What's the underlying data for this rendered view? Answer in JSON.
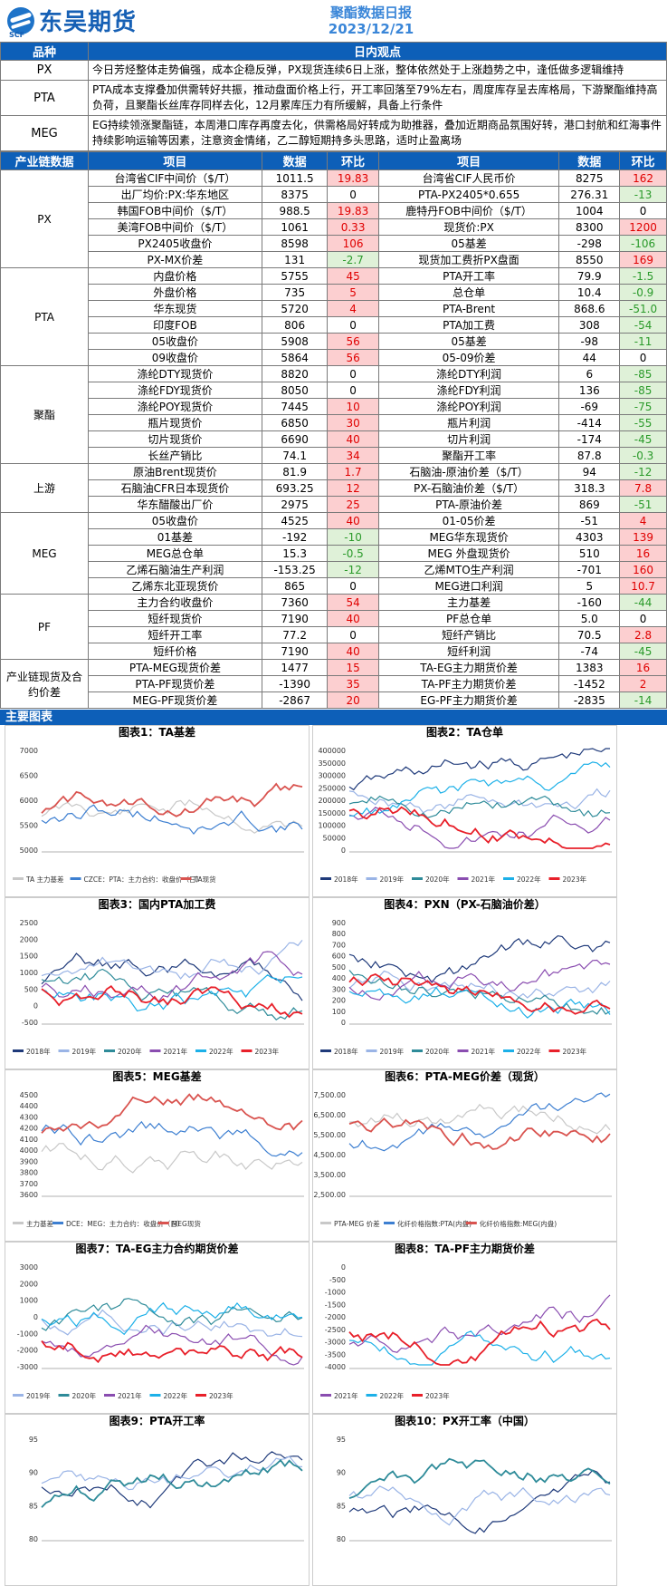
{
  "header": {
    "brand": "东吴期货",
    "brand_sub": "SCF",
    "report": "聚酯数据日报",
    "date": "2023/12/21"
  },
  "view": {
    "col1": "品种",
    "col2": "日内观点",
    "rows": [
      {
        "name": "PX",
        "text": "今日芳烃整体走势偏强，成本企稳反弹，PX现货连续6日上涨，整体依然处于上涨趋势之中，逢低做多逻辑维持"
      },
      {
        "name": "PTA",
        "text": "PTA成本支撑叠加供需转好共振，推动盘面价格上行，开工率回落至79%左右，周度库存呈去库格局，下游聚酯维持高负荷，且聚酯长丝库存同样去化，12月累库压力有所缓解，具备上行条件"
      },
      {
        "name": "MEG",
        "text": "EG持续领涨聚酯链，本周港口库存再度去化，供需格局好转成为助推器，叠加近期商品氛围好转，港口封航和红海事件持续影响运输等因素，注意资金情绪，乙二醇短期持多头思路，适时止盈离场"
      }
    ]
  },
  "table": {
    "headers": [
      "产业链数据",
      "项目",
      "数据",
      "环比",
      "项目",
      "数据",
      "环比"
    ],
    "groups": [
      {
        "name": "PX",
        "rows": [
          [
            "台湾省CIF中间价（$/T）",
            "1011.5",
            "19.83",
            "pos",
            "台湾省CIF人民币价",
            "8275",
            "162",
            "pos"
          ],
          [
            "出厂均价:PX:华东地区",
            "8375",
            "0",
            "",
            "PTA-PX2405*0.655",
            "276.31",
            "-13",
            "neg"
          ],
          [
            "韩国FOB中间价（$/T）",
            "988.5",
            "19.83",
            "pos",
            "鹿特丹FOB中间价（$/T）",
            "1004",
            "0",
            ""
          ],
          [
            "美湾FOB中间价（$/T）",
            "1061",
            "0.33",
            "pos",
            "现货价:PX",
            "8300",
            "1200",
            "pos"
          ],
          [
            "PX2405收盘价",
            "8598",
            "106",
            "pos",
            "05基差",
            "-298",
            "-106",
            "neg"
          ],
          [
            "PX-MX价差",
            "131",
            "-2.7",
            "neg",
            "现货加工费折PX盘面",
            "8550",
            "169",
            "pos"
          ]
        ]
      },
      {
        "name": "PTA",
        "rows": [
          [
            "内盘价格",
            "5755",
            "45",
            "pos",
            "PTA开工率",
            "79.9",
            "-1.5",
            "neg"
          ],
          [
            "外盘价格",
            "735",
            "5",
            "pos",
            "总仓单",
            "10.4",
            "-0.9",
            "neg"
          ],
          [
            "华东现货",
            "5720",
            "4",
            "pos",
            "PTA-Brent",
            "868.6",
            "-51.0",
            "neg"
          ],
          [
            "印度FOB",
            "806",
            "0",
            "",
            "PTA加工费",
            "308",
            "-54",
            "neg"
          ],
          [
            "05收盘价",
            "5908",
            "56",
            "pos",
            "05基差",
            "-98",
            "-11",
            "neg"
          ],
          [
            "09收盘价",
            "5864",
            "56",
            "pos",
            "05-09价差",
            "44",
            "0",
            ""
          ]
        ]
      },
      {
        "name": "聚酯",
        "rows": [
          [
            "涤纶DTY现货价",
            "8820",
            "0",
            "",
            "涤纶DTY利润",
            "6",
            "-85",
            "neg"
          ],
          [
            "涤纶FDY现货价",
            "8050",
            "0",
            "",
            "涤纶FDY利润",
            "136",
            "-85",
            "neg"
          ],
          [
            "涤纶POY现货价",
            "7445",
            "10",
            "pos",
            "涤纶POY利润",
            "-69",
            "-75",
            "neg"
          ],
          [
            "瓶片现货价",
            "6850",
            "30",
            "pos",
            "瓶片利润",
            "-414",
            "-55",
            "neg"
          ],
          [
            "切片现货价",
            "6690",
            "40",
            "pos",
            "切片利润",
            "-174",
            "-45",
            "neg"
          ],
          [
            "长丝产销比",
            "74.1",
            "34",
            "pos",
            "聚酯开工率",
            "87.8",
            "-0.3",
            "neg"
          ]
        ]
      },
      {
        "name": "上游",
        "rows": [
          [
            "原油Brent现货价",
            "81.9",
            "1.7",
            "pos",
            "石脑油-原油价差（$/T）",
            "94",
            "-12",
            "neg"
          ],
          [
            "石脑油CFR日本现货价",
            "693.25",
            "12",
            "pos",
            "PX-石脑油价差（$/T）",
            "318.3",
            "7.8",
            "pos"
          ],
          [
            "华东醋酸出厂价",
            "2975",
            "25",
            "pos",
            "PTA-原油价差",
            "869",
            "-51",
            "neg"
          ]
        ]
      },
      {
        "name": "MEG",
        "rows": [
          [
            "05收盘价",
            "4525",
            "40",
            "pos",
            "01-05价差",
            "-51",
            "4",
            "pos"
          ],
          [
            "01基差",
            "-192",
            "-10",
            "neg",
            "MEG华东现货价",
            "4303",
            "139",
            "pos"
          ],
          [
            "MEG总仓单",
            "15.3",
            "-0.5",
            "neg",
            "MEG 外盘现货价",
            "510",
            "16",
            "pos"
          ],
          [
            "乙烯石脑油生产利润",
            "-153.25",
            "-12",
            "neg",
            "乙烯MTO生产利润",
            "-701",
            "160",
            "pos"
          ],
          [
            "乙烯东北亚现货价",
            "865",
            "0",
            "",
            "MEG进口利润",
            "5",
            "10.7",
            "pos"
          ]
        ]
      },
      {
        "name": "PF",
        "rows": [
          [
            "主力合约收盘价",
            "7360",
            "54",
            "pos",
            "主力基差",
            "-160",
            "-44",
            "neg"
          ],
          [
            "短纤现货价",
            "7190",
            "40",
            "pos",
            "PF总仓单",
            "5.0",
            "0",
            ""
          ],
          [
            "短纤开工率",
            "77.2",
            "0",
            "",
            "短纤产销比",
            "70.5",
            "2.8",
            "pos"
          ],
          [
            "短纤价格",
            "7190",
            "40",
            "pos",
            "短纤利润",
            "-74",
            "-45",
            "neg"
          ]
        ]
      },
      {
        "name": "产业链现货及合约价差",
        "rows": [
          [
            "PTA-MEG现货价差",
            "1477",
            "15",
            "pos",
            "TA-EG主力期货价差",
            "1383",
            "16",
            "pos"
          ],
          [
            "PTA-PF现货价差",
            "-1390",
            "35",
            "pos",
            "TA-PF主力期货价差",
            "-1452",
            "2",
            "pos"
          ],
          [
            "MEG-PF现货价差",
            "-2867",
            "20",
            "pos",
            "EG-PF主力期货价差",
            "-2835",
            "-14",
            "neg"
          ]
        ]
      }
    ]
  },
  "charts": {
    "section": "主要图表",
    "titles": [
      "图表1：TA基差",
      "图表2：TA仓单",
      "图表3：国内PTA加工费",
      "图表4：PXN（PX-石脑油价差）",
      "图表5：MEG基差",
      "图表6：PTA-MEG价差（现货）",
      "图表7：TA-EG主力合约期货价差",
      "图表8：TA-PF主力期货价差",
      "图表9：PTA开工率",
      "图表10：PX开工率（中国）"
    ],
    "legends": [
      [
        "TA 主力基差",
        "CZCE：PTA：主力合约：收盘价（日）",
        "TA现货"
      ],
      [
        "2018年",
        "2019年",
        "2020年",
        "2021年",
        "2022年",
        "2023年"
      ],
      [
        "2018年",
        "2019年",
        "2020年",
        "2021年",
        "2022年",
        "2023年"
      ],
      [
        "2018年",
        "2019年",
        "2020年",
        "2021年",
        "2022年",
        "2023年"
      ],
      [
        "主力基差",
        "DCE：MEG：主力合约：收盘价（日）",
        "MEG现货"
      ],
      [
        "PTA-MEG 价差",
        "化纤价格指数:PTA(内盘)",
        "化纤价格指数:MEG(内盘)"
      ],
      [
        "2019年",
        "2020年",
        "2021年",
        "2022年",
        "2023年"
      ],
      [
        "2021年",
        "2022年",
        "2023年"
      ],
      [],
      []
    ],
    "yaxes": [
      [
        "7000",
        "6500",
        "6000",
        "5500",
        "5000"
      ],
      [
        "400000",
        "350000",
        "300000",
        "250000",
        "200000",
        "150000",
        "100000",
        "50000",
        "0"
      ],
      [
        "2500",
        "2000",
        "1500",
        "1000",
        "500",
        "0",
        "-500"
      ],
      [
        "900",
        "800",
        "700",
        "600",
        "500",
        "400",
        "300",
        "200",
        "100",
        "0"
      ],
      [
        "4500",
        "4400",
        "4300",
        "4200",
        "4100",
        "4000",
        "3900",
        "3800",
        "3700",
        "3600"
      ],
      [
        "7,500.00",
        "6,500.00",
        "5,500.00",
        "4,500.00",
        "3,500.00",
        "2,500.00"
      ],
      [
        "3000",
        "2000",
        "1000",
        "0",
        "-1000",
        "-2000",
        "-3000"
      ],
      [
        "0",
        "-500",
        "-1000",
        "-1500",
        "-2000",
        "-2500",
        "-3000",
        "-3500",
        "-4000"
      ],
      [
        "95",
        "90",
        "85",
        "80"
      ],
      [
        "95",
        "90",
        "85",
        "80"
      ]
    ],
    "colors": {
      "c2018": "#1f3a7a",
      "c2019": "#9ab4e6",
      "c2020": "#2e8b99",
      "c2021": "#8a4db0",
      "c2022": "#1cb0e8",
      "c2023": "#e8202a",
      "blue": "#3d7fd1",
      "red": "#d9534f",
      "gray": "#c8c8c8"
    }
  }
}
